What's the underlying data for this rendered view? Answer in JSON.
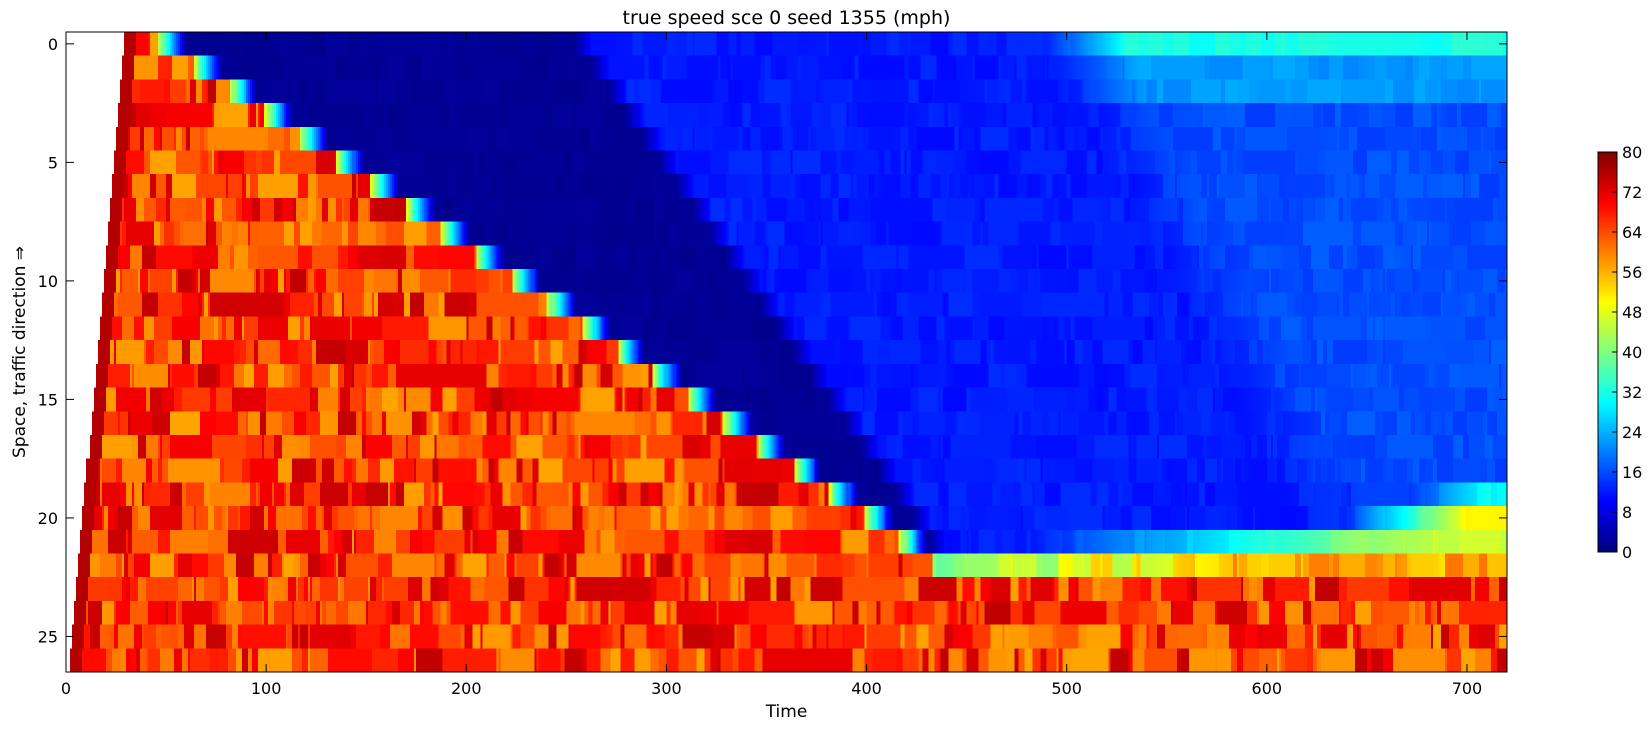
{
  "chart_data": {
    "type": "heatmap",
    "title": "true speed sce 0 seed 1355 (mph)",
    "xlabel": "Time",
    "ylabel": "Space, traffic direction ⇒",
    "xlim": [
      0,
      720
    ],
    "ylim": [
      26.5,
      -0.5
    ],
    "x_ticks": [
      0,
      100,
      200,
      300,
      400,
      500,
      600,
      700
    ],
    "y_ticks": [
      0,
      5,
      10,
      15,
      20,
      25
    ],
    "n_rows": 27,
    "n_cols": 720,
    "colorbar": {
      "range": [
        0,
        80
      ],
      "ticks": [
        0,
        8,
        16,
        24,
        32,
        40,
        48,
        56,
        64,
        72,
        80
      ],
      "colormap": "jet",
      "position": "right"
    },
    "data_description": {
      "free_flow_speed_mph": 66,
      "jam_speed_mph": 1,
      "queue_discharge_speed_mph": 12,
      "row_0_recovered_speed_mph": 32,
      "row_22_final_speed_mph": 46,
      "vehicle_arrival_time_row0": 29,
      "vehicle_arrival_time_row26": 1.5,
      "jam_front_time_row0": 60,
      "jam_front_time_row21": 430,
      "discharge_onset_time_row0": 253,
      "discharge_onset_time_row21": 430,
      "recovery_time_row0": 490,
      "bottleneck_row": 21
    }
  }
}
